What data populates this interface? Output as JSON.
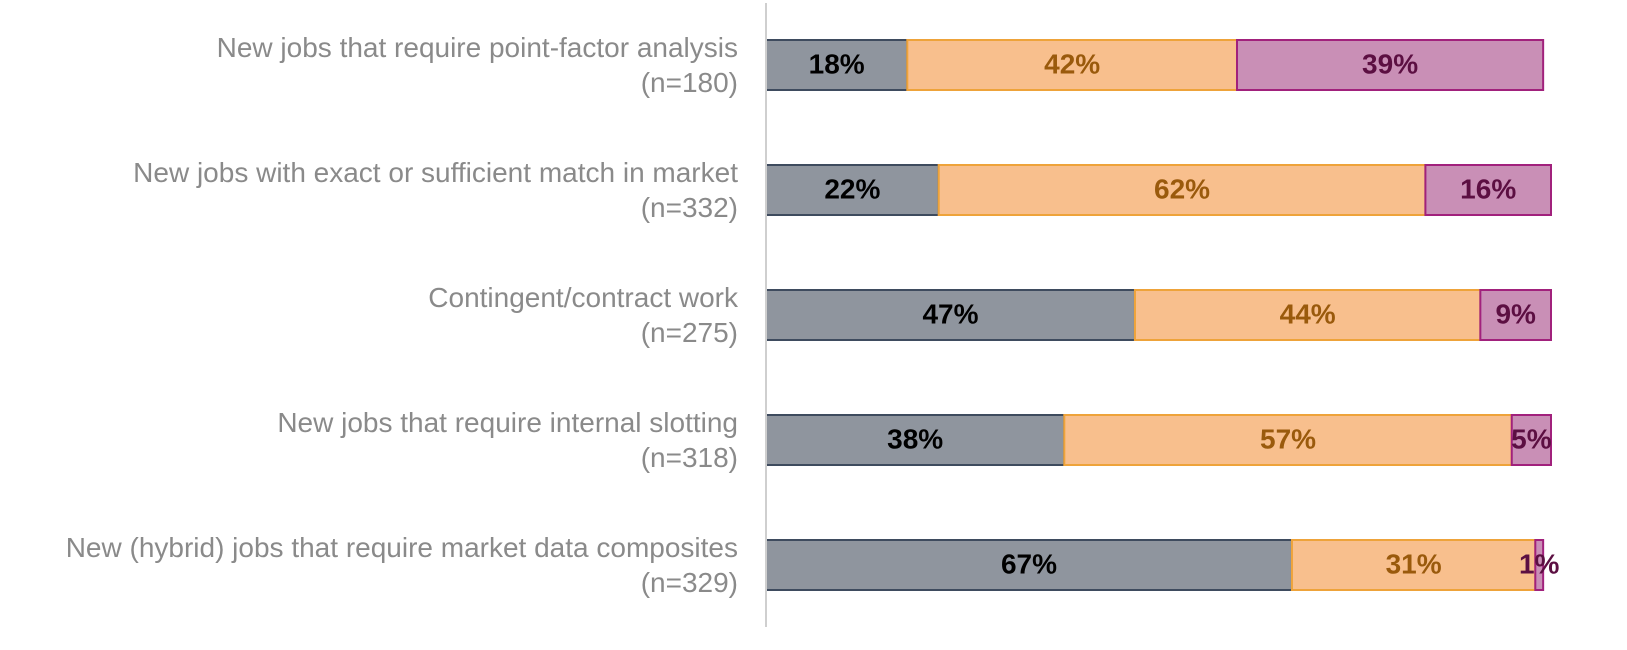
{
  "chart_data": {
    "type": "stacked_barh",
    "categories": [
      "New jobs that require point-factor analysis\n(n=180)",
      "New jobs with exact or sufficient match in market\n(n=332)",
      "Contingent/contract work\n(n=275)",
      "New jobs that require internal slotting\n(n=318)",
      "New (hybrid) jobs that require market data composites\n(n=329)"
    ],
    "series": [
      {
        "color": "#8f959e",
        "border": "#3e4b5e",
        "label_color": "#000000",
        "values": [
          18,
          22,
          47,
          38,
          67
        ],
        "value_labels": [
          "18%",
          "22%",
          "47%",
          "38%",
          "67%"
        ]
      },
      {
        "color": "#f8bf8d",
        "border": "#eea33a",
        "label_color": "#9a5a0c",
        "values": [
          42,
          62,
          44,
          57,
          31
        ],
        "value_labels": [
          "42%",
          "62%",
          "44%",
          "57%",
          "31%"
        ]
      },
      {
        "color": "#c98fb6",
        "border": "#a1217c",
        "label_color": "#5c0f42",
        "values": [
          39,
          16,
          9,
          5,
          1
        ],
        "value_labels": [
          "39%",
          "16%",
          "9%",
          "5%",
          "1%"
        ]
      }
    ],
    "xlim": [
      0,
      100
    ]
  }
}
